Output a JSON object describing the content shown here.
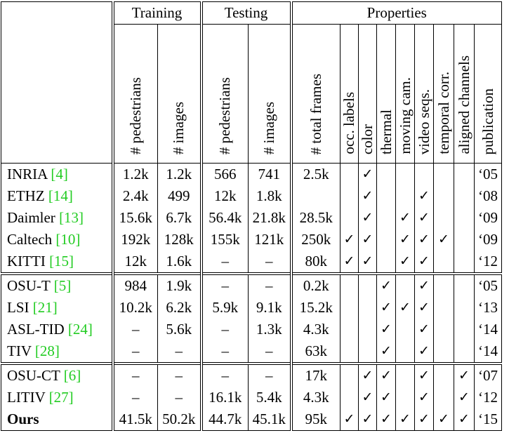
{
  "header": {
    "groups": [
      "Training",
      "Testing",
      "Properties"
    ],
    "columns": [
      "# pedestrians",
      "# images",
      "# pedestrians",
      "# images",
      "# total frames",
      "occ. labels",
      "color",
      "thermal",
      "moving cam.",
      "video seqs.",
      "temporal corr.",
      "aligned channels",
      "publication"
    ]
  },
  "check_mark": "✓",
  "rows": [
    {
      "name": "INRIA",
      "ref": "[4]",
      "values": [
        "1.2k",
        "1.2k",
        "566",
        "741",
        "2.5k"
      ],
      "checks": [
        false,
        true,
        false,
        false,
        false,
        false,
        false
      ],
      "pub": "‘05"
    },
    {
      "name": "ETHZ",
      "ref": "[14]",
      "values": [
        "2.4k",
        "499",
        "12k",
        "1.8k",
        ""
      ],
      "checks": [
        false,
        true,
        false,
        false,
        true,
        false,
        false
      ],
      "pub": "‘08"
    },
    {
      "name": "Daimler",
      "ref": "[13]",
      "values": [
        "15.6k",
        "6.7k",
        "56.4k",
        "21.8k",
        "28.5k"
      ],
      "checks": [
        false,
        true,
        false,
        true,
        true,
        false,
        false
      ],
      "pub": "‘09"
    },
    {
      "name": "Caltech",
      "ref": "[10]",
      "values": [
        "192k",
        "128k",
        "155k",
        "121k",
        "250k"
      ],
      "checks": [
        true,
        true,
        false,
        true,
        true,
        true,
        false
      ],
      "pub": "‘09"
    },
    {
      "name": "KITTI",
      "ref": "[15]",
      "values": [
        "12k",
        "1.6k",
        "–",
        "–",
        "80k"
      ],
      "checks": [
        true,
        true,
        false,
        true,
        true,
        false,
        false
      ],
      "pub": "‘12"
    },
    {
      "name": "OSU-T",
      "ref": "[5]",
      "values": [
        "984",
        "1.9k",
        "–",
        "–",
        "0.2k"
      ],
      "checks": [
        false,
        false,
        true,
        false,
        true,
        false,
        false
      ],
      "pub": "‘05"
    },
    {
      "name": "LSI",
      "ref": "[21]",
      "values": [
        "10.2k",
        "6.2k",
        "5.9k",
        "9.1k",
        "15.2k"
      ],
      "checks": [
        false,
        false,
        true,
        true,
        true,
        false,
        false
      ],
      "pub": "‘13"
    },
    {
      "name": "ASL-TID",
      "ref": "[24]",
      "values": [
        "–",
        "5.6k",
        "–",
        "1.3k",
        "4.3k"
      ],
      "checks": [
        false,
        false,
        true,
        false,
        true,
        false,
        false
      ],
      "pub": "‘14"
    },
    {
      "name": "TIV",
      "ref": "[28]",
      "values": [
        "–",
        "–",
        "–",
        "–",
        "63k"
      ],
      "checks": [
        false,
        false,
        true,
        false,
        true,
        false,
        false
      ],
      "pub": "‘14"
    },
    {
      "name": "OSU-CT",
      "ref": "[6]",
      "values": [
        "–",
        "–",
        "–",
        "–",
        "17k"
      ],
      "checks": [
        false,
        true,
        true,
        false,
        true,
        false,
        true
      ],
      "pub": "‘07"
    },
    {
      "name": "LITIV",
      "ref": "[27]",
      "values": [
        "–",
        "–",
        "16.1k",
        "5.4k",
        "4.3k"
      ],
      "checks": [
        false,
        true,
        true,
        false,
        true,
        false,
        true
      ],
      "pub": "‘12"
    },
    {
      "name": "Ours",
      "ref": "",
      "bold": true,
      "values": [
        "41.5k",
        "50.2k",
        "44.7k",
        "45.1k",
        "95k"
      ],
      "checks": [
        true,
        true,
        true,
        true,
        true,
        true,
        true
      ],
      "pub": "‘15"
    }
  ],
  "colors": {
    "citation": "#22cc22",
    "text": "#000000"
  }
}
